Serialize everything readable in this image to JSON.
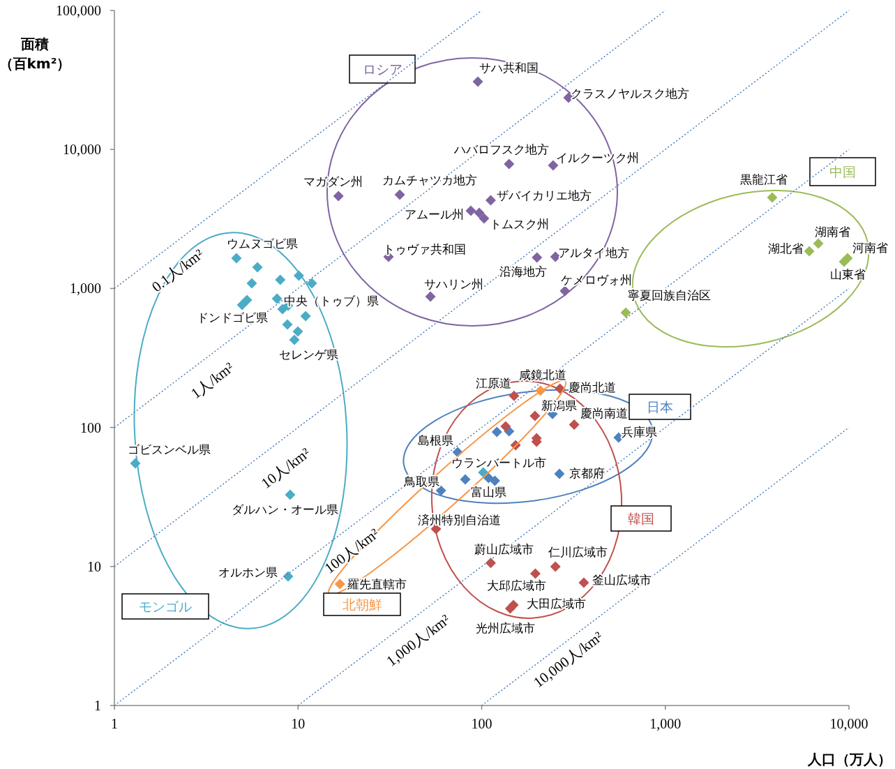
{
  "chart_data": {
    "type": "scatter",
    "xlabel": "人口（万人）",
    "ylabel": "面積（百km²）",
    "log": "xy",
    "grid": false,
    "marker": "diamond",
    "line_style": "dotted",
    "xlim": [
      1,
      10000
    ],
    "ylim": [
      1,
      100000
    ],
    "xticks": [
      {
        "value": 1,
        "label": "1"
      },
      {
        "value": 10,
        "label": "10"
      },
      {
        "value": 100,
        "label": "100"
      },
      {
        "value": 1000,
        "label": "1,000"
      },
      {
        "value": 10000,
        "label": "10,000"
      }
    ],
    "yticks": [
      {
        "value": 1,
        "label": "1"
      },
      {
        "value": 10,
        "label": "10"
      },
      {
        "value": 100,
        "label": "100"
      },
      {
        "value": 1000,
        "label": "1,000"
      },
      {
        "value": 10000,
        "label": "10,000"
      },
      {
        "value": 100000,
        "label": "100,000"
      }
    ],
    "series": [
      {
        "name": "モンゴル",
        "color": "#4bacc6",
        "x": [
          4.62,
          6.01,
          5.6,
          8.0,
          10.1,
          11.9,
          5.27,
          4.96,
          7.68,
          8.23,
          8.83,
          11.0,
          8.75,
          9.98,
          9.55,
          1.3,
          9.06,
          8.83,
          102
        ],
        "values": [
          1651,
          1421,
          1089,
          1154,
          1237,
          1089,
          826,
          762,
          845,
          710,
          753,
          633,
          551,
          491,
          427,
          55.2,
          32.8,
          8.49,
          47.5
        ]
      },
      {
        "name": "ロシア",
        "color": "#8064a2",
        "x": [
          95.3,
          297,
          141,
          245,
          16.6,
          35.8,
          112,
          87.3,
          97.0,
          103,
          31.1,
          200,
          252,
          52.6,
          284
        ],
        "values": [
          30760,
          23590,
          7870,
          7690,
          4620,
          4730,
          4310,
          3625,
          3500,
          3193,
          1690,
          1671,
          1690,
          875,
          959
        ]
      },
      {
        "name": "中国",
        "color": "#9bbb59",
        "x": [
          3820,
          6810,
          6080,
          9820,
          9400,
          609
        ],
        "values": [
          4515,
          2105,
          1854,
          1651,
          1560,
          670
        ]
      },
      {
        "name": "日本",
        "color": "#4f81bd",
        "x": [
          243,
          121,
          141,
          557,
          74.0,
          265,
          60.0,
          81.4,
          109,
          118
        ],
        "values": [
          125,
          92.9,
          94.0,
          84.7,
          66.4,
          46.4,
          35.2,
          42.3,
          43.3,
          41.3
        ]
      },
      {
        "name": "韓国",
        "color": "#c0504d",
        "x": [
          150,
          267,
          195,
          319,
          135,
          199,
          153,
          56.4,
          112,
          252,
          360,
          149,
          143,
          199,
          196
        ],
        "values": [
          169,
          190,
          121,
          105,
          102,
          83.7,
          74.6,
          18.6,
          10.6,
          9.98,
          7.65,
          5.28,
          4.99,
          79.0,
          8.89
        ]
      },
      {
        "name": "北朝鮮",
        "color": "#f79646",
        "x": [
          209,
          16.9
        ],
        "values": [
          184,
          7.47
        ]
      },
      {
        "type": "line",
        "marker": "none",
        "color": "#4a7ebb",
        "x": [
          1,
          100
        ],
        "values": [
          1000,
          100000
        ]
      },
      {
        "type": "line",
        "marker": "none",
        "color": "#4a7ebb",
        "x": [
          1,
          1000
        ],
        "values": [
          100,
          100000
        ]
      },
      {
        "type": "line",
        "marker": "none",
        "color": "#4a7ebb",
        "x": [
          1,
          10000
        ],
        "values": [
          10,
          100000
        ]
      },
      {
        "type": "line",
        "marker": "none",
        "color": "#4a7ebb",
        "x": [
          1,
          10000
        ],
        "values": [
          1,
          10000
        ]
      },
      {
        "type": "line",
        "marker": "none",
        "color": "#4a7ebb",
        "x": [
          10,
          10000
        ],
        "values": [
          1,
          1000
        ]
      },
      {
        "type": "line",
        "marker": "none",
        "color": "#4a7ebb",
        "x": [
          100,
          10000
        ],
        "values": [
          1,
          100
        ]
      }
    ],
    "annotations": [
      {
        "text": "ウムヌゴビ県",
        "x": 4.62,
        "y": 1651
      },
      {
        "text": "中央（トゥブ）県",
        "x": 8.83,
        "y": 753
      },
      {
        "text": "ドンドゴビ県",
        "x": 4.96,
        "y": 762
      },
      {
        "text": "セレンゲ県",
        "x": 9.55,
        "y": 427
      },
      {
        "text": "ゴビスンベル県",
        "x": 1.3,
        "y": 55.2
      },
      {
        "text": "ダルハン・オール県",
        "x": 9.06,
        "y": 32.8
      },
      {
        "text": "オルホン県",
        "x": 8.83,
        "y": 8.49
      },
      {
        "text": "ウランバートル市",
        "x": 102,
        "y": 47.5
      },
      {
        "text": "サハ共和国",
        "x": 95.3,
        "y": 30760
      },
      {
        "text": "クラスノヤルスク地方",
        "x": 297,
        "y": 23590
      },
      {
        "text": "ハバロフスク地方",
        "x": 141,
        "y": 7870
      },
      {
        "text": "イルクーツク州",
        "x": 245,
        "y": 7690
      },
      {
        "text": "マガダン州",
        "x": 16.6,
        "y": 4620
      },
      {
        "text": "カムチャツカ地方",
        "x": 35.8,
        "y": 4730
      },
      {
        "text": "ザバイカリエ地方",
        "x": 112,
        "y": 4310
      },
      {
        "text": "アムール州",
        "x": 87.3,
        "y": 3625
      },
      {
        "text": "トムスク州",
        "x": 103,
        "y": 3193
      },
      {
        "text": "トゥヴァ共和国",
        "x": 31.1,
        "y": 1690
      },
      {
        "text": "沿海地方",
        "x": 200,
        "y": 1671
      },
      {
        "text": "アルタイ地方",
        "x": 252,
        "y": 1690
      },
      {
        "text": "サハリン州",
        "x": 52.6,
        "y": 875
      },
      {
        "text": "ケメロヴォ州",
        "x": 284,
        "y": 959
      },
      {
        "text": "黒龍江省",
        "x": 3820,
        "y": 4515
      },
      {
        "text": "湖南省",
        "x": 6810,
        "y": 2105
      },
      {
        "text": "湖北省",
        "x": 6080,
        "y": 1854
      },
      {
        "text": "河南省",
        "x": 9820,
        "y": 1651
      },
      {
        "text": "山東省",
        "x": 9400,
        "y": 1560
      },
      {
        "text": "寧夏回族自治区",
        "x": 609,
        "y": 670
      },
      {
        "text": "新潟県",
        "x": 243,
        "y": 125
      },
      {
        "text": "兵庫県",
        "x": 557,
        "y": 84.7
      },
      {
        "text": "島根県",
        "x": 74.0,
        "y": 66.4
      },
      {
        "text": "京都府",
        "x": 265,
        "y": 46.4
      },
      {
        "text": "鳥取県",
        "x": 60.0,
        "y": 35.2
      },
      {
        "text": "富山県",
        "x": 118,
        "y": 41.3
      },
      {
        "text": "江原道",
        "x": 150,
        "y": 169
      },
      {
        "text": "慶尚北道",
        "x": 267,
        "y": 190
      },
      {
        "text": "慶尚南道",
        "x": 319,
        "y": 105
      },
      {
        "text": "済州特別自治道",
        "x": 56.4,
        "y": 18.6
      },
      {
        "text": "蔚山広域市",
        "x": 112,
        "y": 10.6
      },
      {
        "text": "仁川広域市",
        "x": 252,
        "y": 9.98
      },
      {
        "text": "大邱広域市",
        "x": 196,
        "y": 8.89
      },
      {
        "text": "釜山広域市",
        "x": 360,
        "y": 7.65
      },
      {
        "text": "大田広域市",
        "x": 149,
        "y": 5.28
      },
      {
        "text": "光州広域市",
        "x": 143,
        "y": 4.99
      },
      {
        "text": "咸鏡北道",
        "x": 209,
        "y": 184
      },
      {
        "text": "羅先直轄市",
        "x": 16.9,
        "y": 7.47
      },
      {
        "text": "0.1人/km²",
        "x": 2.22,
        "y": 2220
      },
      {
        "text": "1人/km²",
        "x": 3.43,
        "y": 343
      },
      {
        "text": "10人/km²",
        "x": 8.6,
        "y": 86
      },
      {
        "text": "100人/km²",
        "x": 19.7,
        "y": 19.7
      },
      {
        "text": "1,000人/km²",
        "x": 45.3,
        "y": 4.53
      },
      {
        "text": "10,000人/km²",
        "x": 297,
        "y": 2.97
      }
    ]
  }
}
